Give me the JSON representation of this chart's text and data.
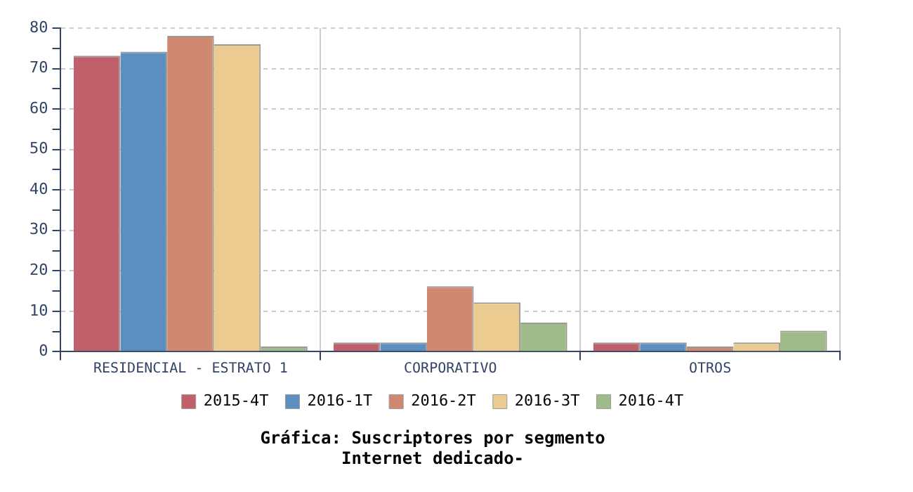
{
  "chart_data": {
    "type": "bar",
    "title": "Gráfica: Suscriptores por segmento",
    "subtitle": "Internet dedicado-",
    "categories": [
      "RESIDENCIAL - ESTRATO 1",
      "CORPORATIVO",
      "OTROS"
    ],
    "series": [
      {
        "name": "2015-4T",
        "color": "#c0606a",
        "values": [
          73.2,
          2.3,
          2.3
        ]
      },
      {
        "name": "2016-1T",
        "color": "#5a8fc0",
        "values": [
          74.2,
          2.3,
          2.3
        ]
      },
      {
        "name": "2016-2T",
        "color": "#d08870",
        "values": [
          78.1,
          16.2,
          1.3
        ]
      },
      {
        "name": "2016-3T",
        "color": "#ebcb8f",
        "values": [
          76.0,
          12.2,
          2.3
        ]
      },
      {
        "name": "2016-4T",
        "color": "#a0bb8a",
        "values": [
          1.3,
          7.2,
          5.2
        ]
      }
    ],
    "ylim": [
      0,
      80
    ],
    "yticks": [
      0,
      {
        "value": 5,
        "label": null
      },
      10,
      {
        "value": 15,
        "label": null
      },
      20,
      {
        "value": 25,
        "label": null
      },
      30,
      {
        "value": 35,
        "label": null
      },
      40,
      {
        "value": 45,
        "label": null
      },
      50,
      {
        "value": 55,
        "label": null
      },
      60,
      {
        "value": 65,
        "label": null
      },
      70,
      {
        "value": 75,
        "label": null
      },
      80
    ],
    "grid": true,
    "legend": "bottom"
  }
}
